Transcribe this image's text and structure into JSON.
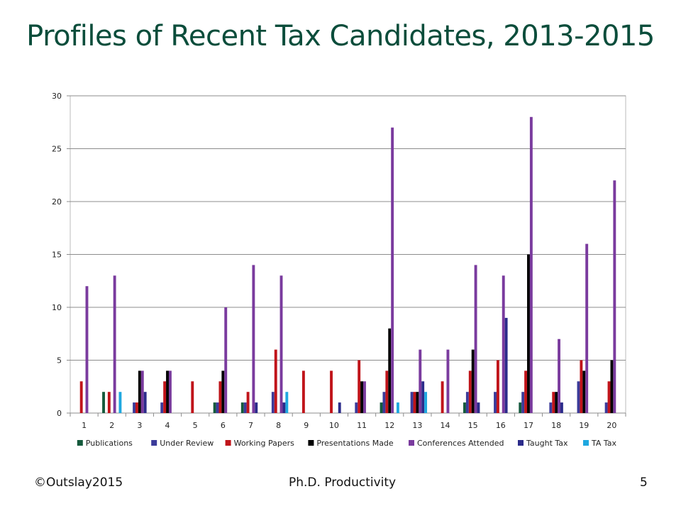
{
  "slide": {
    "title": "Profiles of Recent Tax Candidates, 2013-2015",
    "footer_left": "©Outslay2015",
    "footer_center": "Ph.D. Productivity",
    "page_number": "5"
  },
  "chart_data": {
    "type": "bar",
    "title": "",
    "xlabel": "",
    "ylabel": "",
    "ylim": [
      0,
      30
    ],
    "yticks": [
      0,
      5,
      10,
      15,
      20,
      25,
      30
    ],
    "grid": true,
    "legend_position": "bottom",
    "categories": [
      "1",
      "2",
      "3",
      "4",
      "5",
      "6",
      "7",
      "8",
      "9",
      "10",
      "11",
      "12",
      "13",
      "14",
      "15",
      "16",
      "17",
      "18",
      "19",
      "20"
    ],
    "series": [
      {
        "name": "Publications",
        "color": "#145a3c",
        "values": [
          0,
          2,
          0,
          0,
          0,
          1,
          1,
          0,
          0,
          0,
          0,
          1,
          0,
          0,
          1,
          0,
          1,
          0,
          0,
          0
        ]
      },
      {
        "name": "Under Review",
        "color": "#3b3b9a",
        "values": [
          0,
          0,
          1,
          1,
          0,
          1,
          1,
          2,
          0,
          0,
          1,
          2,
          2,
          0,
          2,
          2,
          2,
          1,
          3,
          1
        ]
      },
      {
        "name": "Working Papers",
        "color": "#c0141a",
        "values": [
          3,
          2,
          1,
          3,
          3,
          3,
          2,
          6,
          4,
          4,
          5,
          4,
          2,
          3,
          4,
          5,
          4,
          2,
          5,
          3
        ]
      },
      {
        "name": "Presentations Made",
        "color": "#000000",
        "values": [
          0,
          0,
          4,
          4,
          0,
          4,
          0,
          0,
          0,
          0,
          3,
          8,
          2,
          0,
          6,
          0,
          15,
          2,
          4,
          5
        ]
      },
      {
        "name": "Conferences Attended",
        "color": "#7a3b9e",
        "values": [
          12,
          13,
          4,
          4,
          0,
          10,
          14,
          13,
          0,
          0,
          3,
          27,
          6,
          6,
          14,
          13,
          28,
          7,
          16,
          22
        ]
      },
      {
        "name": "Taught Tax",
        "color": "#2b2b8a",
        "values": [
          0,
          0,
          2,
          0,
          0,
          0,
          1,
          1,
          0,
          1,
          0,
          0,
          3,
          0,
          1,
          9,
          0,
          1,
          0,
          0
        ]
      },
      {
        "name": "TA Tax",
        "color": "#1fa8e0",
        "values": [
          0,
          2,
          0,
          0,
          0,
          0,
          0,
          2,
          0,
          0,
          0,
          1,
          2,
          0,
          0,
          0,
          0,
          0,
          0,
          0
        ]
      }
    ]
  }
}
